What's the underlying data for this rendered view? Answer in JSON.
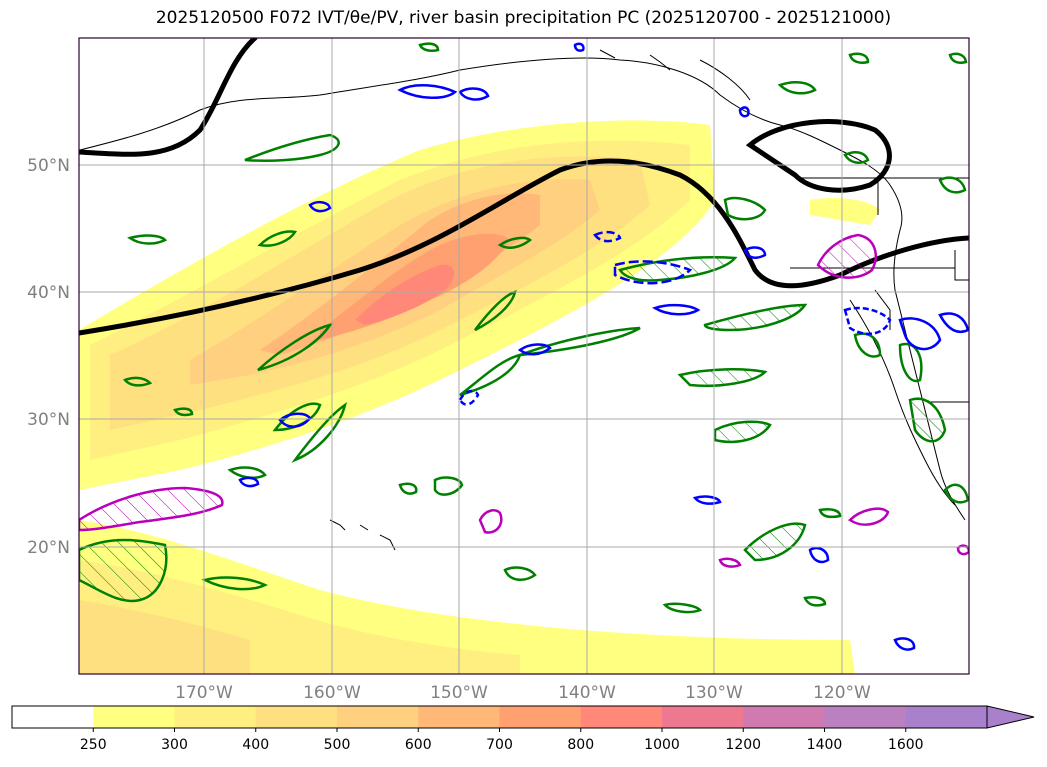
{
  "title": "2025120500 F072 IVT/θe/PV, river basin precipitation PC (2025120700 - 2025121000)",
  "map": {
    "lat_labels": [
      "50°N",
      "40°N",
      "30°N",
      "20°N"
    ],
    "lon_labels": [
      "170°W",
      "160°W",
      "150°W",
      "140°W",
      "130°W",
      "120°W"
    ]
  },
  "colorbar": {
    "ticks": [
      "250",
      "300",
      "400",
      "500",
      "600",
      "700",
      "800",
      "1000",
      "1200",
      "1400",
      "1600"
    ],
    "colors": [
      "#ffffff",
      "#ffff80",
      "#ffee80",
      "#ffe080",
      "#ffd080",
      "#ffb878",
      "#ffa070",
      "#ff8878",
      "#ee7890",
      "#d07ab0",
      "#bb80c0",
      "#a880cc"
    ]
  },
  "legend_colors": {
    "ivt_fill": "#ffff80",
    "pv_contour": "#000000",
    "green_contour": "#008000",
    "blue_contour": "#0000ff",
    "magenta_contour": "#bb00bb"
  }
}
